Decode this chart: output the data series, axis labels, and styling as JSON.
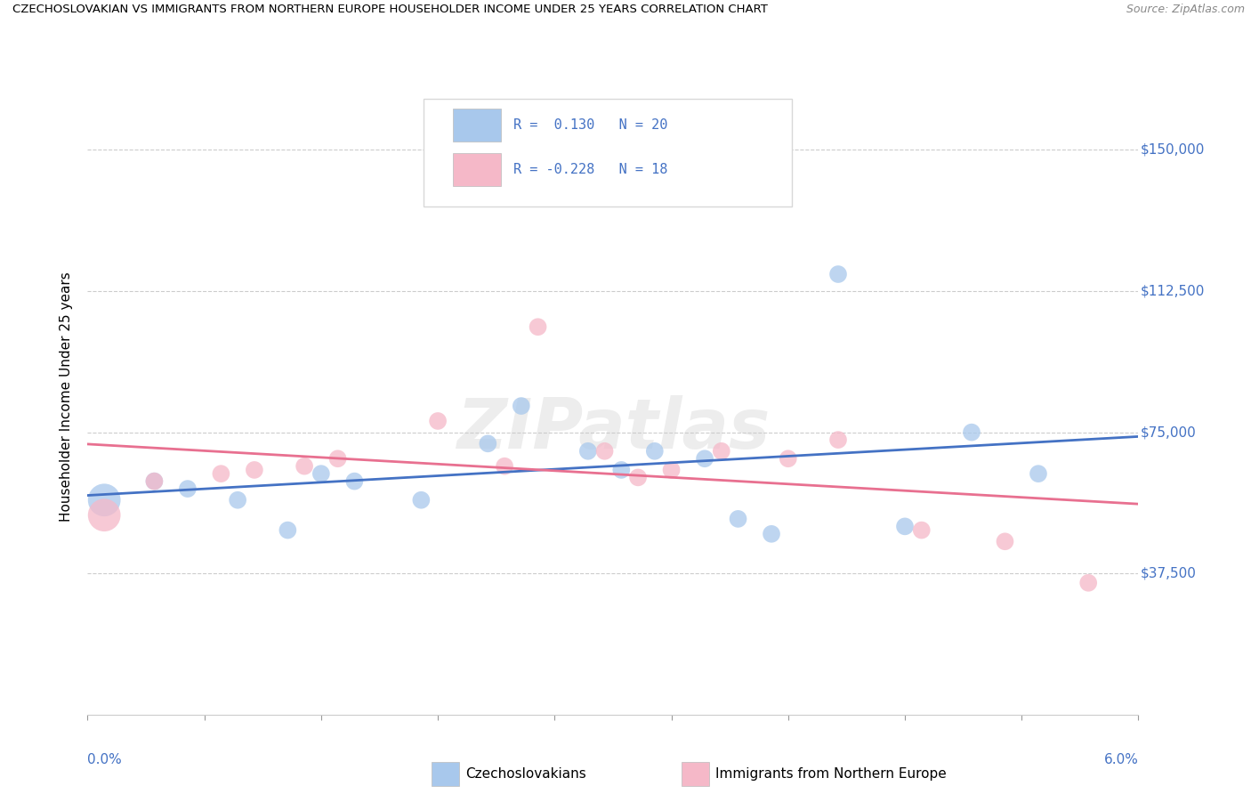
{
  "title": "CZECHOSLOVAKIAN VS IMMIGRANTS FROM NORTHERN EUROPE HOUSEHOLDER INCOME UNDER 25 YEARS CORRELATION CHART",
  "source": "Source: ZipAtlas.com",
  "ylabel": "Householder Income Under 25 years",
  "watermark": "ZIPatlas",
  "r_czech": 0.13,
  "n_czech": 20,
  "r_north": -0.228,
  "n_north": 18,
  "blue_color": "#a8c8ec",
  "pink_color": "#f5b8c8",
  "blue_line_color": "#4472c4",
  "pink_line_color": "#e87090",
  "label_color": "#4472c4",
  "ytick_labels": [
    "$150,000",
    "$112,500",
    "$75,000",
    "$37,500"
  ],
  "ytick_values": [
    150000,
    112500,
    75000,
    37500
  ],
  "ymin": 0,
  "ymax": 168750,
  "xmin": 0.0,
  "xmax": 0.063,
  "czech_points": [
    [
      0.001,
      57000,
      700
    ],
    [
      0.004,
      62000,
      200
    ],
    [
      0.006,
      60000,
      200
    ],
    [
      0.009,
      57000,
      200
    ],
    [
      0.012,
      49000,
      200
    ],
    [
      0.014,
      64000,
      200
    ],
    [
      0.016,
      62000,
      200
    ],
    [
      0.02,
      57000,
      200
    ],
    [
      0.024,
      72000,
      200
    ],
    [
      0.026,
      82000,
      200
    ],
    [
      0.03,
      70000,
      200
    ],
    [
      0.032,
      65000,
      200
    ],
    [
      0.034,
      70000,
      200
    ],
    [
      0.037,
      68000,
      200
    ],
    [
      0.039,
      52000,
      200
    ],
    [
      0.041,
      48000,
      200
    ],
    [
      0.045,
      117000,
      200
    ],
    [
      0.049,
      50000,
      200
    ],
    [
      0.053,
      75000,
      200
    ],
    [
      0.057,
      64000,
      200
    ]
  ],
  "north_points": [
    [
      0.001,
      53000,
      700
    ],
    [
      0.004,
      62000,
      200
    ],
    [
      0.008,
      64000,
      200
    ],
    [
      0.01,
      65000,
      200
    ],
    [
      0.013,
      66000,
      200
    ],
    [
      0.015,
      68000,
      200
    ],
    [
      0.021,
      78000,
      200
    ],
    [
      0.025,
      66000,
      200
    ],
    [
      0.027,
      103000,
      200
    ],
    [
      0.031,
      70000,
      200
    ],
    [
      0.033,
      63000,
      200
    ],
    [
      0.035,
      65000,
      200
    ],
    [
      0.038,
      70000,
      200
    ],
    [
      0.042,
      68000,
      200
    ],
    [
      0.045,
      73000,
      200
    ],
    [
      0.05,
      49000,
      200
    ],
    [
      0.055,
      46000,
      200
    ],
    [
      0.06,
      35000,
      200
    ]
  ],
  "background_color": "#ffffff",
  "grid_color": "#cccccc",
  "legend_label1": "Czechoslovakians",
  "legend_label2": "Immigrants from Northern Europe"
}
